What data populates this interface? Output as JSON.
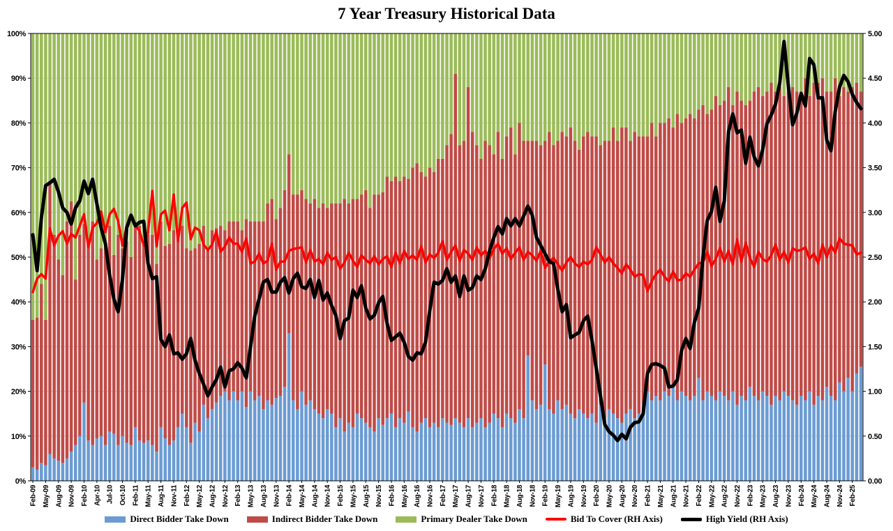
{
  "title": "7 Year Treasury Historical Data",
  "chart_data": {
    "type": "bar",
    "subtype": "100%-stacked-bars-with-overlay-lines",
    "title": "7 Year Treasury Historical Data",
    "grid": true,
    "legend_position": "bottom",
    "n_points": 195,
    "left_axis": {
      "min": 0,
      "max": 100,
      "step": 10,
      "format": "percent",
      "ticks": [
        "0%",
        "10%",
        "20%",
        "30%",
        "40%",
        "50%",
        "60%",
        "70%",
        "80%",
        "90%",
        "100%"
      ]
    },
    "right_axis": {
      "min": 0,
      "max": 5,
      "step": 0.5,
      "ticks": [
        "0.00",
        "0.50",
        "1.00",
        "1.50",
        "2.00",
        "2.50",
        "3.00",
        "3.50",
        "4.00",
        "4.50",
        "5.00"
      ]
    },
    "x_tick_labels": [
      "Feb-09",
      "May-09",
      "Aug-09",
      "Nov-09",
      "Feb-10",
      "Apr-10",
      "Jul-10",
      "Oct-10",
      "Feb-11",
      "May-11",
      "Aug-11",
      "Nov-11",
      "Feb-12",
      "May-12",
      "Aug-12",
      "Nov-12",
      "Feb-13",
      "May-13",
      "Aug-13",
      "Nov-13",
      "Feb-14",
      "May-14",
      "Aug-14",
      "Nov-14",
      "Feb-15",
      "May-15",
      "Aug-15",
      "Nov-15",
      "Feb-16",
      "May-16",
      "Aug-16",
      "Nov-16",
      "Feb-17",
      "May-17",
      "Aug-17",
      "Nov-17",
      "Feb-18",
      "May-18",
      "Aug-18",
      "Nov-18",
      "Feb-19",
      "May-19",
      "Aug-19",
      "Nov-19",
      "Feb-20",
      "May-20",
      "Aug-20",
      "Nov-20",
      "Feb-21",
      "May-21",
      "Aug-21",
      "Nov-21",
      "Feb-22",
      "May-22",
      "Aug-22",
      "Nov-22",
      "Feb-23",
      "May-23",
      "Aug-23",
      "Nov-23",
      "Feb-24",
      "May-24",
      "Aug-24",
      "Nov-24",
      "Feb-25"
    ],
    "x_label_every_n_bars": 3,
    "bar_series": [
      {
        "name": "Direct Bidder Take Down",
        "color": "#6b9bd2",
        "axis": "left",
        "values": [
          3,
          2.5,
          4,
          3.5,
          6,
          5,
          4.5,
          4,
          5,
          6.5,
          8,
          10,
          17.5,
          9,
          8,
          9.5,
          10,
          8,
          11,
          10.5,
          8,
          10,
          8.5,
          8,
          12,
          9,
          8.5,
          9,
          8,
          6.5,
          12,
          9.5,
          8,
          9,
          12,
          15,
          12,
          8.5,
          13,
          11,
          17,
          14,
          16,
          17.5,
          19,
          20,
          18,
          20,
          18,
          20,
          16.5,
          20,
          18,
          19,
          16,
          18,
          17,
          18.5,
          19,
          21,
          33,
          18,
          16,
          20,
          17,
          18,
          16,
          15,
          14,
          16,
          15,
          12,
          14,
          11,
          13,
          12,
          15,
          14,
          13,
          12,
          11,
          14,
          12.5,
          14,
          15,
          12,
          14,
          13,
          15.5,
          12,
          11,
          13,
          14,
          12,
          13,
          12,
          14,
          13,
          12.5,
          14,
          13,
          12,
          14,
          12,
          13,
          14,
          12,
          13,
          15,
          14,
          12,
          15,
          14,
          13,
          16,
          14,
          28,
          18,
          16,
          17,
          26,
          16,
          15,
          18,
          16,
          17,
          15,
          14,
          16,
          15,
          14,
          15,
          13,
          17,
          14,
          16,
          15,
          14,
          13,
          15,
          16,
          14,
          15,
          17,
          20,
          18,
          19,
          18,
          20,
          19,
          21,
          18,
          20,
          19,
          18,
          19,
          23,
          18,
          20,
          19,
          18,
          20,
          19,
          18,
          20,
          17,
          19,
          18,
          21,
          19,
          18,
          20,
          19,
          17,
          19,
          18,
          20,
          19,
          18,
          17,
          19,
          18,
          20,
          17,
          19,
          18,
          21,
          19,
          18,
          22,
          20,
          23,
          20,
          24,
          25.5
        ]
      },
      {
        "name": "Indirect Bidder Take Down",
        "color": "#bf4b47",
        "axis": "left",
        "values": [
          33,
          34,
          40,
          32.5,
          61,
          50,
          45,
          42,
          53,
          56,
          37,
          45,
          40,
          45,
          50,
          40,
          42,
          44,
          46,
          40,
          47,
          42,
          45,
          42,
          45,
          48,
          44,
          46,
          47,
          42,
          46,
          43,
          45,
          47,
          44,
          42,
          40,
          43,
          39,
          42,
          40,
          38,
          40,
          39,
          38,
          36,
          40,
          38,
          40,
          36,
          42,
          38,
          40,
          39,
          42,
          44,
          46,
          40,
          42,
          44,
          40,
          46,
          48,
          45,
          46,
          44,
          47,
          46,
          48,
          45,
          47,
          50,
          48,
          52,
          49,
          51,
          48,
          50,
          52,
          49,
          53,
          50,
          52,
          54,
          52,
          56,
          53,
          55,
          52,
          58,
          60,
          56,
          54,
          58,
          56,
          60,
          58,
          62,
          65,
          77,
          62,
          64,
          74,
          66,
          62,
          58,
          64,
          62,
          58,
          64,
          60,
          62,
          65,
          60,
          64,
          62,
          48,
          58,
          60,
          58,
          50,
          62,
          60,
          58,
          62,
          60,
          64,
          62,
          58,
          62,
          64,
          62,
          64,
          58,
          62,
          60,
          64,
          62,
          66,
          64,
          60,
          64,
          62,
          60,
          57,
          62,
          58,
          62,
          60,
          62,
          58,
          64,
          60,
          62,
          64,
          62,
          60,
          66,
          62,
          64,
          68,
          64,
          66,
          70,
          64,
          70,
          66,
          66,
          64,
          68,
          70,
          66,
          68,
          72,
          68,
          70,
          66,
          68,
          70,
          70,
          68,
          72,
          66,
          72,
          70,
          72,
          66,
          68,
          72,
          64,
          68,
          64,
          68,
          65,
          61.5
        ]
      },
      {
        "name": "Primary Dealer Take Down",
        "color": "#9bbb59",
        "axis": "left",
        "values": [
          64,
          63.5,
          56,
          64,
          33,
          45,
          50.5,
          54,
          42,
          37.5,
          55,
          45,
          42.5,
          46,
          42,
          50.5,
          48,
          48,
          43,
          49.5,
          45,
          48,
          46.5,
          50,
          43,
          43,
          47.5,
          45,
          45,
          51.5,
          42,
          47.5,
          47,
          44,
          44,
          43,
          48,
          48.5,
          48,
          47,
          43,
          48,
          44,
          43.5,
          43,
          44,
          42,
          42,
          42,
          44,
          41.5,
          42,
          42,
          42,
          42,
          38,
          37,
          41.5,
          39,
          35,
          27,
          36,
          36,
          35,
          37,
          38,
          37,
          39,
          38,
          39,
          38,
          38,
          38,
          37,
          38,
          37,
          37,
          36,
          35,
          39,
          36,
          36,
          35.5,
          32,
          33,
          32,
          33,
          32,
          32.5,
          30,
          29,
          31,
          32,
          30,
          31,
          28,
          28,
          25,
          22.5,
          9,
          25,
          24,
          12,
          22,
          25,
          28,
          24,
          25,
          27,
          22,
          28,
          23,
          21,
          27,
          20,
          24,
          24,
          24,
          24,
          25,
          24,
          22,
          25,
          24,
          22,
          23,
          21,
          24,
          26,
          23,
          22,
          23,
          23,
          25,
          24,
          24,
          21,
          24,
          21,
          21,
          24,
          22,
          23,
          23,
          23,
          20,
          23,
          20,
          20,
          19,
          21,
          18,
          20,
          19,
          18,
          19,
          17,
          16,
          18,
          17,
          14,
          16,
          15,
          12,
          16,
          13,
          15,
          16,
          15,
          13,
          12,
          14,
          13,
          11,
          13,
          12,
          14,
          13,
          12,
          13,
          13,
          10,
          14,
          11,
          11,
          10,
          13,
          13,
          10,
          14,
          12,
          13,
          12,
          11,
          13
        ]
      }
    ],
    "line_series": [
      {
        "name": "Bid To Cover (RH Axis)",
        "color": "#ff0000",
        "axis": "right",
        "values": [
          2.11,
          2.26,
          2.31,
          2.26,
          2.82,
          2.63,
          2.74,
          2.79,
          2.65,
          2.76,
          2.72,
          2.85,
          2.98,
          2.61,
          2.83,
          2.88,
          3.01,
          2.78,
          2.98,
          3.04,
          2.9,
          2.63,
          2.85,
          2.97,
          2.86,
          2.79,
          2.63,
          2.78,
          3.24,
          2.62,
          2.98,
          3.02,
          2.8,
          3.2,
          2.68,
          3.05,
          3.11,
          2.7,
          2.83,
          2.8,
          2.64,
          2.58,
          2.64,
          2.79,
          2.56,
          2.62,
          2.72,
          2.65,
          2.65,
          2.56,
          2.71,
          2.43,
          2.45,
          2.54,
          2.43,
          2.46,
          2.65,
          2.36,
          2.45,
          2.45,
          2.57,
          2.59,
          2.6,
          2.61,
          2.44,
          2.58,
          2.45,
          2.48,
          2.42,
          2.55,
          2.47,
          2.5,
          2.37,
          2.44,
          2.55,
          2.46,
          2.39,
          2.52,
          2.47,
          2.43,
          2.51,
          2.42,
          2.48,
          2.51,
          2.39,
          2.55,
          2.43,
          2.57,
          2.48,
          2.52,
          2.47,
          2.62,
          2.44,
          2.53,
          2.49,
          2.55,
          2.68,
          2.47,
          2.56,
          2.63,
          2.46,
          2.58,
          2.54,
          2.47,
          2.61,
          2.52,
          2.57,
          2.49,
          2.59,
          2.65,
          2.54,
          2.6,
          2.48,
          2.55,
          2.61,
          2.47,
          2.56,
          2.52,
          2.46,
          2.57,
          2.38,
          2.45,
          2.49,
          2.42,
          2.35,
          2.44,
          2.5,
          2.43,
          2.39,
          2.45,
          2.42,
          2.47,
          2.61,
          2.53,
          2.44,
          2.5,
          2.43,
          2.38,
          2.32,
          2.42,
          2.36,
          2.28,
          2.31,
          2.3,
          2.12,
          2.23,
          2.31,
          2.36,
          2.28,
          2.23,
          2.34,
          2.24,
          2.25,
          2.32,
          2.28,
          2.36,
          2.43,
          2.44,
          2.56,
          2.4,
          2.48,
          2.6,
          2.45,
          2.57,
          2.42,
          2.7,
          2.45,
          2.66,
          2.49,
          2.39,
          2.56,
          2.48,
          2.45,
          2.52,
          2.64,
          2.47,
          2.56,
          2.44,
          2.6,
          2.57,
          2.58,
          2.61,
          2.48,
          2.54,
          2.43,
          2.64,
          2.5,
          2.63,
          2.55,
          2.71,
          2.65,
          2.64,
          2.63,
          2.53,
          2.55
        ]
      },
      {
        "name": "High Yield (RH Axis)",
        "color": "#000000",
        "axis": "right",
        "values": [
          2.75,
          2.35,
          2.94,
          3.3,
          3.33,
          3.37,
          3.23,
          3.05,
          3.0,
          2.87,
          3.05,
          3.13,
          3.35,
          3.21,
          3.37,
          3.1,
          2.83,
          2.65,
          2.3,
          2.03,
          1.89,
          2.25,
          2.83,
          2.97,
          2.85,
          2.89,
          2.9,
          2.43,
          2.26,
          2.28,
          1.58,
          1.5,
          1.63,
          1.42,
          1.43,
          1.36,
          1.42,
          1.59,
          1.35,
          1.2,
          1.08,
          0.95,
          1.05,
          1.13,
          1.27,
          1.05,
          1.23,
          1.25,
          1.32,
          1.26,
          1.15,
          1.5,
          1.84,
          2.03,
          2.22,
          2.25,
          2.11,
          2.11,
          2.22,
          2.27,
          2.1,
          2.26,
          2.32,
          2.17,
          2.15,
          2.25,
          2.05,
          2.24,
          2.02,
          2.1,
          1.96,
          1.85,
          1.59,
          1.79,
          1.82,
          2.13,
          2.05,
          2.18,
          1.93,
          1.81,
          1.85,
          1.99,
          2.06,
          1.76,
          1.57,
          1.61,
          1.65,
          1.55,
          1.39,
          1.35,
          1.43,
          1.42,
          1.55,
          1.9,
          2.22,
          2.2,
          2.24,
          2.37,
          2.22,
          2.29,
          2.06,
          2.29,
          2.13,
          2.16,
          2.29,
          2.25,
          2.37,
          2.57,
          2.72,
          2.84,
          2.76,
          2.93,
          2.85,
          2.93,
          2.85,
          2.96,
          3.07,
          2.97,
          2.72,
          2.63,
          2.54,
          2.45,
          2.43,
          2.14,
          1.89,
          1.97,
          1.6,
          1.63,
          1.66,
          1.79,
          1.84,
          1.57,
          1.26,
          0.95,
          0.63,
          0.55,
          0.51,
          0.45,
          0.52,
          0.47,
          0.6,
          0.65,
          0.66,
          0.75,
          1.2,
          1.3,
          1.31,
          1.29,
          1.26,
          1.05,
          1.06,
          1.13,
          1.46,
          1.59,
          1.48,
          1.77,
          1.93,
          2.5,
          2.91,
          3.01,
          3.28,
          2.9,
          3.13,
          3.9,
          4.1,
          3.89,
          3.92,
          3.55,
          3.84,
          3.62,
          3.52,
          3.7,
          3.99,
          4.09,
          4.21,
          4.45,
          4.91,
          4.42,
          3.98,
          4.11,
          4.33,
          4.19,
          4.72,
          4.65,
          4.28,
          4.28,
          3.81,
          3.69,
          4.13,
          4.4,
          4.53,
          4.46,
          4.32,
          4.23,
          4.16
        ]
      }
    ],
    "colors": {
      "gridline": "#d3d3d3",
      "plot_border": "#000000",
      "background": "#ffffff"
    }
  }
}
